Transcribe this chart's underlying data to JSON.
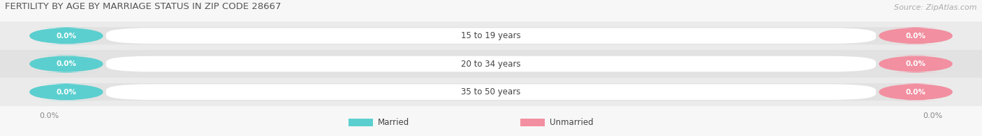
{
  "title": "FERTILITY BY AGE BY MARRIAGE STATUS IN ZIP CODE 28667",
  "source": "Source: ZipAtlas.com",
  "age_groups": [
    "15 to 19 years",
    "20 to 34 years",
    "35 to 50 years"
  ],
  "married_values": [
    "0.0%",
    "0.0%",
    "0.0%"
  ],
  "unmarried_values": [
    "0.0%",
    "0.0%",
    "0.0%"
  ],
  "married_color": "#5bcfcf",
  "unmarried_color": "#f28fa0",
  "bar_bg_color": "#e2e2e2",
  "row_bg_even": "#ebebeb",
  "row_bg_odd": "#e2e2e2",
  "background_color": "#f7f7f7",
  "title_fontsize": 9.5,
  "source_fontsize": 8,
  "legend_married": "Married",
  "legend_unmarried": "Unmarried",
  "xtick_left": "0.0%",
  "xtick_right": "0.0%"
}
